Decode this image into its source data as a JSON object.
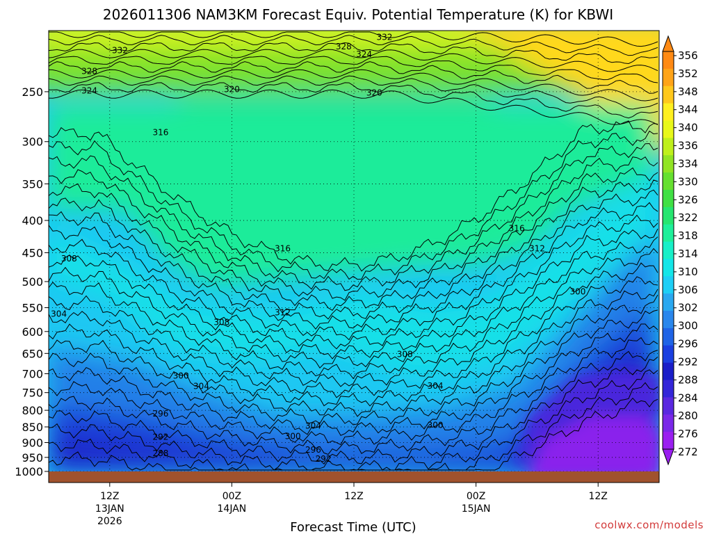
{
  "chart_data": {
    "type": "heatmap",
    "title": "2026011306 NAM3KM Forecast Equiv. Potential Temperature (K) for KBWI",
    "xlabel": "Forecast Time (UTC)",
    "ylabel": "",
    "y_ticks": [
      250,
      300,
      350,
      400,
      450,
      500,
      550,
      600,
      650,
      700,
      750,
      800,
      850,
      900,
      950,
      1000
    ],
    "y_range": [
      1000,
      200
    ],
    "y_scale": "log-pressure",
    "x_ticks": [
      {
        "hour": 6,
        "label": "12Z",
        "sub1": "13JAN",
        "sub2": "2026"
      },
      {
        "hour": 18,
        "label": "00Z",
        "sub1": "14JAN",
        "sub2": ""
      },
      {
        "hour": 30,
        "label": "12Z",
        "sub1": "",
        "sub2": ""
      },
      {
        "hour": 42,
        "label": "00Z",
        "sub1": "15JAN",
        "sub2": ""
      },
      {
        "hour": 54,
        "label": "12Z",
        "sub1": "",
        "sub2": ""
      }
    ],
    "x_range": [
      0,
      60
    ],
    "colorbar": {
      "levels": [
        272,
        276,
        280,
        284,
        288,
        292,
        296,
        300,
        302,
        306,
        310,
        314,
        318,
        322,
        326,
        330,
        334,
        336,
        340,
        344,
        348,
        352,
        356
      ],
      "colors": [
        "#9a1ff0",
        "#7a28e8",
        "#5a28e0",
        "#3426d8",
        "#1a1ec8",
        "#1a3fe0",
        "#1f64e6",
        "#2a87ec",
        "#2aa8f0",
        "#1ecff6",
        "#14e6e8",
        "#18f0c8",
        "#1ef09a",
        "#26e670",
        "#40e044",
        "#66e030",
        "#92e424",
        "#bff01c",
        "#e8f81a",
        "#fff020",
        "#ffc81c",
        "#ffa418",
        "#ff8a14"
      ],
      "labels": [
        "356",
        "352",
        "348",
        "344",
        "340",
        "336",
        "334",
        "330",
        "326",
        "322",
        "318",
        "314",
        "310",
        "306",
        "302",
        "300",
        "296",
        "292",
        "288",
        "284",
        "280",
        "276",
        "272"
      ]
    },
    "contour_labels": [
      {
        "value": "332",
        "hour": 7,
        "p": 215
      },
      {
        "value": "332",
        "hour": 33,
        "p": 205
      },
      {
        "value": "328",
        "hour": 4,
        "p": 232
      },
      {
        "value": "328",
        "hour": 29,
        "p": 212
      },
      {
        "value": "324",
        "hour": 4,
        "p": 249
      },
      {
        "value": "324",
        "hour": 31,
        "p": 218
      },
      {
        "value": "320",
        "hour": 18,
        "p": 248
      },
      {
        "value": "320",
        "hour": 32,
        "p": 251
      },
      {
        "value": "316",
        "hour": 11,
        "p": 290
      },
      {
        "value": "316",
        "hour": 23,
        "p": 443
      },
      {
        "value": "316",
        "hour": 46,
        "p": 412
      },
      {
        "value": "312",
        "hour": 23,
        "p": 560
      },
      {
        "value": "312",
        "hour": 48,
        "p": 443
      },
      {
        "value": "308",
        "hour": 2,
        "p": 460
      },
      {
        "value": "308",
        "hour": 17,
        "p": 580
      },
      {
        "value": "308",
        "hour": 35,
        "p": 652
      },
      {
        "value": "304",
        "hour": 1,
        "p": 563
      },
      {
        "value": "304",
        "hour": 15,
        "p": 733
      },
      {
        "value": "304",
        "hour": 26,
        "p": 847
      },
      {
        "value": "304",
        "hour": 38,
        "p": 732
      },
      {
        "value": "300",
        "hour": 13,
        "p": 705
      },
      {
        "value": "300",
        "hour": 24,
        "p": 880
      },
      {
        "value": "300",
        "hour": 38,
        "p": 845
      },
      {
        "value": "300",
        "hour": 52,
        "p": 519
      },
      {
        "value": "296",
        "hour": 11,
        "p": 810
      },
      {
        "value": "296",
        "hour": 26,
        "p": 924
      },
      {
        "value": "292",
        "hour": 11,
        "p": 882
      },
      {
        "value": "292",
        "hour": 27,
        "p": 955
      },
      {
        "value": "288",
        "hour": 11,
        "p": 936
      }
    ],
    "credit": "coolwx.com/models"
  }
}
